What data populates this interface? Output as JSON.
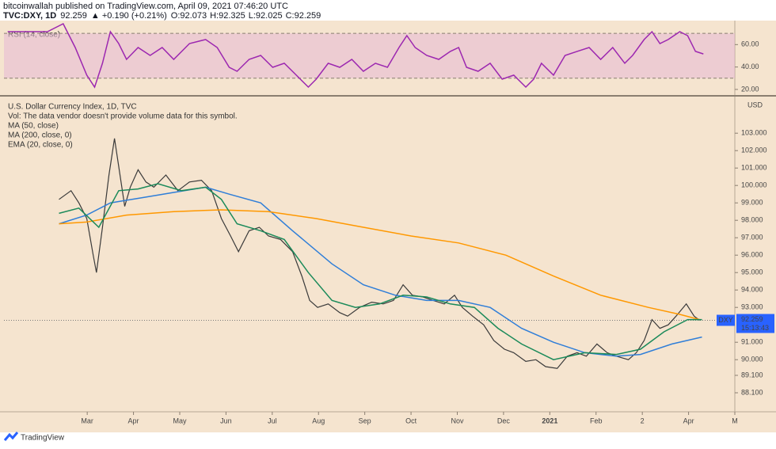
{
  "header": {
    "publisher": "bitcoinwallah published on TradingView.com, April 09, 2021 07:46:20 UTC",
    "symbol": "TVC:DXY, 1D",
    "last": "92.259",
    "change": "▲ +0.190 (+0.21%)",
    "ohlc": [
      "O:",
      "92.073",
      "H:",
      "92.325",
      "L:",
      "92.025",
      "C:",
      "92.259"
    ]
  },
  "footer": "TradingView",
  "chart_data": [
    {
      "type": "line",
      "title": "RSI (14, close)",
      "xlim": [
        -0.8,
        15
      ],
      "ylim": [
        15,
        80
      ],
      "band": [
        30,
        70
      ],
      "yticks": [
        {
          "value": 20,
          "label": "20.00"
        },
        {
          "value": 40,
          "label": "40.00"
        },
        {
          "value": 60,
          "label": "60.00"
        }
      ],
      "series": [
        {
          "color": "#9c27b0",
          "x": [
            -0.72,
            0.14,
            0.48,
            0.74,
            0.99,
            1.16,
            1.33,
            1.5,
            1.68,
            1.85,
            2.1,
            2.36,
            2.62,
            2.87,
            3.21,
            3.56,
            3.81,
            4.07,
            4.24,
            4.5,
            4.75,
            5.01,
            5.26,
            5.52,
            5.78,
            5.95,
            6.21,
            6.46,
            6.72,
            6.97,
            7.23,
            7.49,
            7.74,
            7.91,
            8.09,
            8.34,
            8.6,
            8.85,
            9.03,
            9.2,
            9.45,
            9.71,
            9.97,
            10.22,
            10.48,
            10.65,
            10.82,
            11.08,
            11.33,
            11.59,
            11.85,
            12.1,
            12.36,
            12.62,
            12.79,
            13.04,
            13.21,
            13.38,
            13.56,
            13.81,
            13.98,
            14.15,
            14.32
          ],
          "values": [
            71.5,
            71.5,
            78.6,
            57.4,
            32.7,
            22.1,
            43.3,
            71.5,
            60.9,
            46.8,
            57.4,
            50.3,
            57.4,
            46.8,
            60.9,
            64.5,
            57.4,
            39.7,
            36.2,
            46.8,
            50.3,
            39.7,
            43.3,
            32.7,
            22.1,
            29.1,
            43.3,
            39.7,
            46.8,
            36.2,
            43.3,
            39.7,
            57.4,
            68.0,
            57.4,
            50.3,
            46.8,
            53.9,
            57.4,
            39.7,
            36.2,
            43.3,
            29.1,
            32.7,
            22.1,
            29.1,
            43.3,
            32.7,
            50.3,
            53.9,
            57.4,
            46.8,
            57.4,
            43.3,
            50.3,
            64.5,
            71.5,
            60.9,
            64.5,
            71.5,
            68.0,
            53.9,
            51.7
          ]
        }
      ]
    },
    {
      "type": "line",
      "title": "U.S. Dollar Currency Index, 1D, TVC",
      "annotations": [
        "Vol: The data vendor doesn't provide volume data for this symbol."
      ],
      "xlim": [
        -0.8,
        15
      ],
      "ylim": [
        87.1,
        105.1
      ],
      "unit": "USD",
      "last": 92.259,
      "last_label": "92.259",
      "countdown": "15:13:43",
      "xticks": [
        {
          "value": 1,
          "label": "Mar"
        },
        {
          "value": 2,
          "label": "Apr"
        },
        {
          "value": 3,
          "label": "May"
        },
        {
          "value": 4,
          "label": "Jun"
        },
        {
          "value": 5,
          "label": "Jul"
        },
        {
          "value": 6,
          "label": "Aug"
        },
        {
          "value": 7,
          "label": "Sep"
        },
        {
          "value": 8,
          "label": "Oct"
        },
        {
          "value": 9,
          "label": "Nov"
        },
        {
          "value": 10,
          "label": "Dec"
        },
        {
          "value": 11,
          "label": "2021"
        },
        {
          "value": 12,
          "label": "Feb"
        },
        {
          "value": 13,
          "label": "2"
        },
        {
          "value": 14,
          "label": "Apr"
        },
        {
          "value": 15,
          "label": "M"
        }
      ],
      "yticks": [
        {
          "value": 103,
          "label": "103.000"
        },
        {
          "value": 102,
          "label": "102.000"
        },
        {
          "value": 101,
          "label": "101.000"
        },
        {
          "value": 100,
          "label": "100.000"
        },
        {
          "value": 99,
          "label": "99.000"
        },
        {
          "value": 98,
          "label": "98.000"
        },
        {
          "value": 97,
          "label": "97.000"
        },
        {
          "value": 96,
          "label": "96.000"
        },
        {
          "value": 95,
          "label": "95.000"
        },
        {
          "value": 94,
          "label": "94.000"
        },
        {
          "value": 93,
          "label": "93.000"
        },
        {
          "value": 91,
          "label": "91.000"
        },
        {
          "value": 90,
          "label": "90.000"
        },
        {
          "value": 89.1,
          "label": "89.100"
        },
        {
          "value": 88.1,
          "label": "88.100"
        }
      ],
      "series": [
        {
          "name": "DXY",
          "color": "#3a3a3a",
          "x": [
            0.39,
            0.65,
            0.82,
            0.99,
            1.13,
            1.2,
            1.33,
            1.47,
            1.59,
            1.68,
            1.81,
            1.93,
            2.1,
            2.27,
            2.44,
            2.7,
            2.96,
            3.21,
            3.47,
            3.69,
            3.9,
            4.1,
            4.27,
            4.5,
            4.72,
            4.92,
            5.18,
            5.44,
            5.64,
            5.81,
            5.98,
            6.21,
            6.46,
            6.63,
            6.89,
            7.15,
            7.4,
            7.62,
            7.83,
            8.03,
            8.26,
            8.48,
            8.72,
            8.94,
            9.11,
            9.33,
            9.57,
            9.79,
            10.02,
            10.22,
            10.48,
            10.7,
            10.91,
            11.16,
            11.38,
            11.59,
            11.79,
            12.02,
            12.24,
            12.44,
            12.7,
            12.87,
            13.04,
            13.21,
            13.38,
            13.56,
            13.73,
            13.95,
            14.12,
            14.24
          ],
          "values": [
            99.2,
            99.7,
            99.0,
            98.1,
            96.0,
            95.0,
            97.6,
            100.6,
            102.7,
            101.1,
            98.8,
            99.9,
            100.9,
            100.2,
            99.9,
            100.6,
            99.7,
            100.2,
            100.3,
            99.7,
            98.1,
            97.1,
            96.2,
            97.4,
            97.6,
            97.1,
            96.9,
            96.2,
            94.8,
            93.4,
            93.0,
            93.2,
            92.7,
            92.5,
            93.0,
            93.3,
            93.2,
            93.4,
            94.3,
            93.7,
            93.6,
            93.4,
            93.2,
            93.7,
            93.0,
            92.5,
            92.0,
            91.1,
            90.6,
            90.4,
            89.9,
            90.0,
            89.6,
            89.5,
            90.2,
            90.4,
            90.2,
            90.9,
            90.4,
            90.2,
            90.0,
            90.4,
            91.1,
            92.3,
            91.8,
            92.0,
            92.5,
            93.2,
            92.5,
            92.259
          ]
        },
        {
          "name": "MA (50, close)",
          "color": "#2f7ed8",
          "x": [
            0.39,
            0.99,
            1.5,
            2.19,
            2.87,
            3.56,
            4.07,
            4.75,
            5.44,
            6.29,
            6.97,
            7.66,
            8.34,
            9.03,
            9.71,
            10.39,
            11.08,
            11.76,
            12.44,
            12.96,
            13.64,
            14.29
          ],
          "values": [
            97.8,
            98.3,
            99.0,
            99.3,
            99.6,
            99.9,
            99.5,
            99.0,
            97.4,
            95.5,
            94.3,
            93.7,
            93.4,
            93.4,
            93.0,
            91.8,
            91.0,
            90.4,
            90.2,
            90.3,
            90.9,
            91.3
          ]
        },
        {
          "name": "MA (200, close, 0)",
          "color": "#ff9800",
          "x": [
            0.39,
            0.99,
            1.85,
            2.87,
            3.9,
            4.92,
            5.95,
            6.97,
            8.0,
            9.03,
            10.05,
            11.08,
            12.1,
            13.13,
            13.81,
            14.24
          ],
          "values": [
            97.8,
            97.9,
            98.3,
            98.5,
            98.6,
            98.5,
            98.1,
            97.6,
            97.1,
            96.7,
            96.0,
            94.8,
            93.7,
            93.0,
            92.6,
            92.3
          ]
        },
        {
          "name": "EMA (20, close, 0)",
          "color": "#1b8a5a",
          "x": [
            0.39,
            0.82,
            1.25,
            1.68,
            2.1,
            2.53,
            3.04,
            3.56,
            3.9,
            4.24,
            4.75,
            5.26,
            5.78,
            6.29,
            6.8,
            7.32,
            7.83,
            8.34,
            8.85,
            9.37,
            9.88,
            10.39,
            11.08,
            11.76,
            12.44,
            12.96,
            13.47,
            13.98,
            14.29
          ],
          "values": [
            98.4,
            98.7,
            97.6,
            99.7,
            99.8,
            100.1,
            99.7,
            99.9,
            99.2,
            97.8,
            97.4,
            96.9,
            95.0,
            93.4,
            93.0,
            93.2,
            93.7,
            93.6,
            93.2,
            93.0,
            91.8,
            90.9,
            90.0,
            90.4,
            90.3,
            90.6,
            91.6,
            92.3,
            92.3
          ]
        }
      ]
    }
  ]
}
